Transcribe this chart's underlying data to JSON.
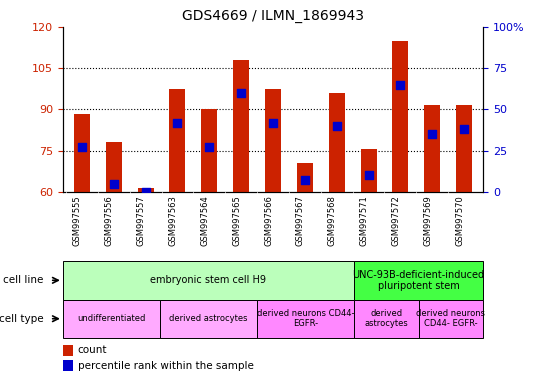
{
  "title": "GDS4669 / ILMN_1869943",
  "samples": [
    "GSM997555",
    "GSM997556",
    "GSM997557",
    "GSM997563",
    "GSM997564",
    "GSM997565",
    "GSM997566",
    "GSM997567",
    "GSM997568",
    "GSM997571",
    "GSM997572",
    "GSM997569",
    "GSM997570"
  ],
  "count_values": [
    88.5,
    78.0,
    61.5,
    97.5,
    90.0,
    108.0,
    97.5,
    70.5,
    96.0,
    75.5,
    115.0,
    91.5,
    91.5
  ],
  "percentile_values": [
    27,
    5,
    0,
    42,
    27,
    60,
    42,
    7,
    40,
    10,
    65,
    35,
    38
  ],
  "ylim_left": [
    60,
    120
  ],
  "ylim_right": [
    0,
    100
  ],
  "yticks_left": [
    60,
    75,
    90,
    105,
    120
  ],
  "yticks_right": [
    0,
    25,
    50,
    75,
    100
  ],
  "ytick_right_labels": [
    "0",
    "25",
    "50",
    "75",
    "100%"
  ],
  "bar_color": "#cc2200",
  "dot_color": "#0000cc",
  "cell_line_groups": [
    {
      "label": "embryonic stem cell H9",
      "start": 0,
      "end": 9,
      "color": "#bbffbb"
    },
    {
      "label": "UNC-93B-deficient-induced\npluripotent stem",
      "start": 9,
      "end": 13,
      "color": "#44ff44"
    }
  ],
  "cell_type_groups": [
    {
      "label": "undifferentiated",
      "start": 0,
      "end": 3,
      "color": "#ffaaff"
    },
    {
      "label": "derived astrocytes",
      "start": 3,
      "end": 6,
      "color": "#ffaaff"
    },
    {
      "label": "derived neurons CD44-\nEGFR-",
      "start": 6,
      "end": 9,
      "color": "#ff88ff"
    },
    {
      "label": "derived\nastrocytes",
      "start": 9,
      "end": 11,
      "color": "#ff88ff"
    },
    {
      "label": "derived neurons\nCD44- EGFR-",
      "start": 11,
      "end": 13,
      "color": "#ff88ff"
    }
  ],
  "bar_width": 0.5,
  "dot_size": 30,
  "xtick_bg_color": "#cccccc",
  "legend_count_color": "#cc2200",
  "legend_pct_color": "#0000cc"
}
